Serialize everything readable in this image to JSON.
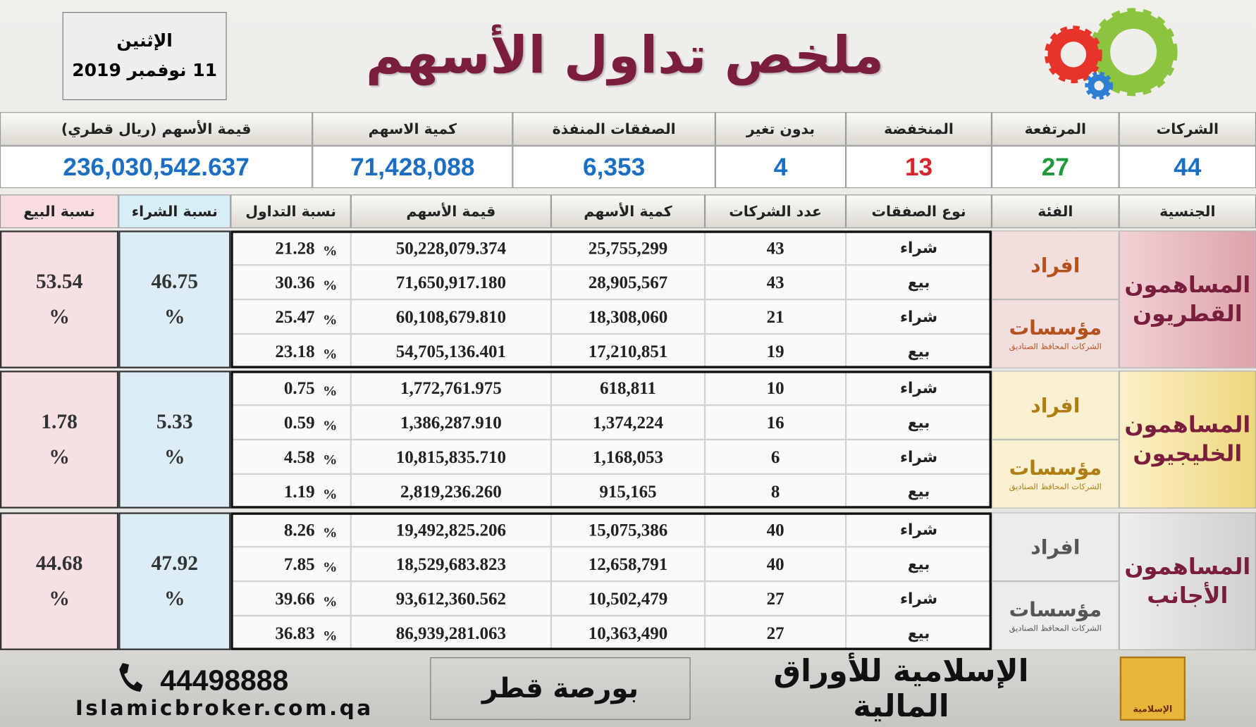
{
  "header": {
    "day": "الإثنين",
    "date": "11 نوفمبر 2019",
    "title": "ملخص تداول الأسهم"
  },
  "summary": {
    "headers": [
      "الشركات",
      "المرتفعة",
      "المنخفضة",
      "بدون تغير",
      "الصفقات المنفذة",
      "كمية الاسهم",
      "قيمة الأسهم (ريال قطري)"
    ],
    "values": [
      "44",
      "27",
      "13",
      "4",
      "6,353",
      "71,428,088",
      "236,030,542.637"
    ]
  },
  "table": {
    "headers": [
      "الجنسية",
      "الفئة",
      "نوع الصفقات",
      "عدد الشركات",
      "كمية الأسهم",
      "قيمة الأسهم",
      "نسبة التداول",
      "نسبة الشراء",
      "نسبة البيع"
    ],
    "percent_sign": "%",
    "groups": [
      {
        "nationality": "المساهمون القطريون",
        "buy_ratio": "46.75",
        "sell_ratio": "53.54",
        "categories": [
          {
            "label": "افراد",
            "rows": [
              [
                "شراء",
                "43",
                "25,755,299",
                "50,228,079.374",
                "21.28"
              ],
              [
                "بيع",
                "43",
                "28,905,567",
                "71,650,917.180",
                "30.36"
              ]
            ]
          },
          {
            "label": "مؤسسات",
            "note": "الشركات المحافظ الصناديق",
            "rows": [
              [
                "شراء",
                "21",
                "18,308,060",
                "60,108,679.810",
                "25.47"
              ],
              [
                "بيع",
                "19",
                "17,210,851",
                "54,705,136.401",
                "23.18"
              ]
            ]
          }
        ]
      },
      {
        "nationality": "المساهمون الخليجيون",
        "buy_ratio": "5.33",
        "sell_ratio": "1.78",
        "categories": [
          {
            "label": "افراد",
            "rows": [
              [
                "شراء",
                "10",
                "618,811",
                "1,772,761.975",
                "0.75"
              ],
              [
                "بيع",
                "16",
                "1,374,224",
                "1,386,287.910",
                "0.59"
              ]
            ]
          },
          {
            "label": "مؤسسات",
            "note": "الشركات المحافظ الصناديق",
            "rows": [
              [
                "شراء",
                "6",
                "1,168,053",
                "10,815,835.710",
                "4.58"
              ],
              [
                "بيع",
                "8",
                "915,165",
                "2,819,236.260",
                "1.19"
              ]
            ]
          }
        ]
      },
      {
        "nationality": "المساهمون الأجانب",
        "buy_ratio": "47.92",
        "sell_ratio": "44.68",
        "categories": [
          {
            "label": "افراد",
            "rows": [
              [
                "شراء",
                "40",
                "15,075,386",
                "19,492,825.206",
                "8.26"
              ],
              [
                "بيع",
                "40",
                "12,658,791",
                "18,529,683.823",
                "7.85"
              ]
            ]
          },
          {
            "label": "مؤسسات",
            "note": "الشركات المحافظ الصناديق",
            "rows": [
              [
                "شراء",
                "27",
                "10,502,479",
                "93,612,360.562",
                "39.66"
              ],
              [
                "بيع",
                "27",
                "10,363,490",
                "86,939,281.063",
                "36.83"
              ]
            ]
          }
        ]
      }
    ]
  },
  "footer": {
    "phone": "44498888",
    "website": "Islamicbroker.com.qa",
    "exchange": "بورصة قطر",
    "company": "الإسلامية للأوراق المالية",
    "logo_text": "الإسلامية"
  }
}
